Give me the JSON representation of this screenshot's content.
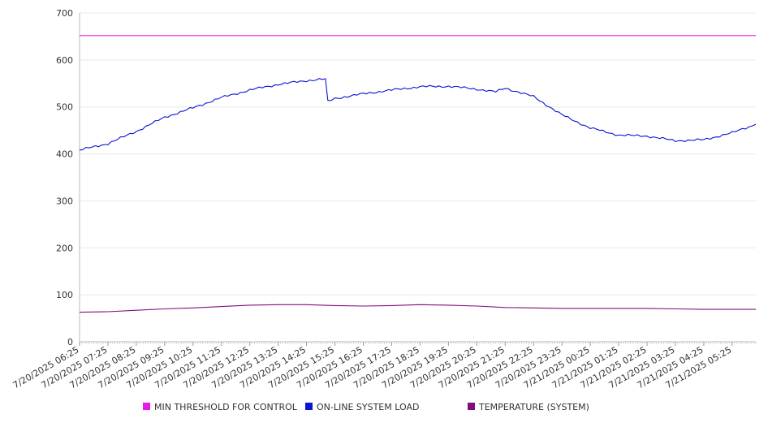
{
  "chart_data": {
    "type": "line",
    "title": "",
    "xlabel": "",
    "ylabel": "",
    "ylim": [
      0,
      700
    ],
    "yticks": [
      0,
      100,
      200,
      300,
      400,
      500,
      600,
      700
    ],
    "grid": true,
    "legend_position": "bottom",
    "x_tick_labels": [
      "7/20/2025 06:25",
      "7/20/2025 07:25",
      "7/20/2025 08:25",
      "7/20/2025 09:25",
      "7/20/2025 10:25",
      "7/20/2025 11:25",
      "7/20/2025 12:25",
      "7/20/2025 13:25",
      "7/20/2025 14:25",
      "7/20/2025 15:25",
      "7/20/2025 16:25",
      "7/20/2025 17:25",
      "7/20/2025 18:25",
      "7/20/2025 19:25",
      "7/20/2025 20:25",
      "7/20/2025 21:25",
      "7/20/2025 22:25",
      "7/20/2025 23:25",
      "7/21/2025 00:25",
      "7/21/2025 01:25",
      "7/21/2025 02:25",
      "7/21/2025 03:25",
      "7/21/2025 04:25",
      "7/21/2025 05:25"
    ],
    "x_last": "7/21/2025 06:15",
    "series": [
      {
        "name": "MIN THRESHOLD FOR CONTROL",
        "color": "#e619e6",
        "points": [
          [
            "7/20/2025 06:25",
            652
          ],
          [
            "7/21/2025 06:15",
            652
          ]
        ]
      },
      {
        "name": "ON-LINE SYSTEM LOAD",
        "color": "#0a14d2",
        "points": [
          [
            "7/20/2025 06:25",
            408
          ],
          [
            "7/20/2025 07:25",
            422
          ],
          [
            "7/20/2025 08:25",
            448
          ],
          [
            "7/20/2025 09:25",
            478
          ],
          [
            "7/20/2025 10:25",
            498
          ],
          [
            "7/20/2025 11:25",
            520
          ],
          [
            "7/20/2025 12:25",
            536
          ],
          [
            "7/20/2025 13:25",
            548
          ],
          [
            "7/20/2025 14:25",
            556
          ],
          [
            "7/20/2025 15:05",
            560
          ],
          [
            "7/20/2025 15:10",
            512
          ],
          [
            "7/20/2025 15:25",
            518
          ],
          [
            "7/20/2025 16:25",
            528
          ],
          [
            "7/20/2025 17:25",
            536
          ],
          [
            "7/20/2025 18:25",
            543
          ],
          [
            "7/20/2025 19:25",
            544
          ],
          [
            "7/20/2025 20:25",
            538
          ],
          [
            "7/20/2025 21:05",
            532
          ],
          [
            "7/20/2025 21:25",
            540
          ],
          [
            "7/20/2025 22:25",
            522
          ],
          [
            "7/20/2025 23:25",
            483
          ],
          [
            "7/21/2025 00:25",
            455
          ],
          [
            "7/21/2025 01:25",
            440
          ],
          [
            "7/21/2025 02:25",
            438
          ],
          [
            "7/21/2025 03:25",
            428
          ],
          [
            "7/21/2025 04:25",
            430
          ],
          [
            "7/21/2025 05:25",
            445
          ],
          [
            "7/21/2025 06:15",
            463
          ]
        ]
      },
      {
        "name": "TEMPERATURE (SYSTEM)",
        "color": "#7f0f7e",
        "points": [
          [
            "7/20/2025 06:25",
            63
          ],
          [
            "7/20/2025 07:25",
            64
          ],
          [
            "7/20/2025 08:25",
            67
          ],
          [
            "7/20/2025 09:25",
            70
          ],
          [
            "7/20/2025 10:25",
            72
          ],
          [
            "7/20/2025 11:25",
            75
          ],
          [
            "7/20/2025 12:25",
            78
          ],
          [
            "7/20/2025 13:25",
            79
          ],
          [
            "7/20/2025 14:25",
            79
          ],
          [
            "7/20/2025 15:25",
            77
          ],
          [
            "7/20/2025 16:25",
            76
          ],
          [
            "7/20/2025 17:25",
            77
          ],
          [
            "7/20/2025 18:25",
            79
          ],
          [
            "7/20/2025 19:25",
            78
          ],
          [
            "7/20/2025 20:25",
            76
          ],
          [
            "7/20/2025 21:25",
            73
          ],
          [
            "7/20/2025 22:25",
            72
          ],
          [
            "7/20/2025 23:25",
            71
          ],
          [
            "7/21/2025 00:25",
            71
          ],
          [
            "7/21/2025 01:25",
            71
          ],
          [
            "7/21/2025 02:25",
            71
          ],
          [
            "7/21/2025 03:25",
            70
          ],
          [
            "7/21/2025 04:25",
            69
          ],
          [
            "7/21/2025 05:25",
            69
          ],
          [
            "7/21/2025 06:15",
            69
          ]
        ]
      }
    ]
  }
}
